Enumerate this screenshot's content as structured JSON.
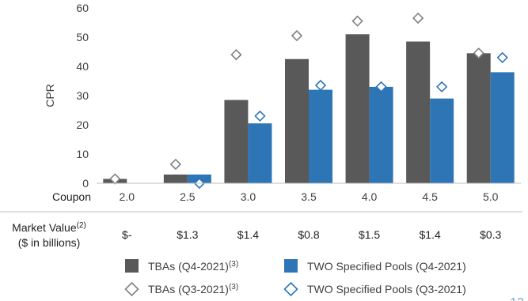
{
  "chart_data": {
    "type": "bar",
    "ylabel": "CPR",
    "ylim": [
      0,
      60
    ],
    "yticks": [
      0,
      10,
      20,
      30,
      40,
      50,
      60
    ],
    "grid": false,
    "x_row_label": "Coupon",
    "categories": [
      "2.0",
      "2.5",
      "3.0",
      "3.5",
      "4.0",
      "4.5",
      "5.0"
    ],
    "series": [
      {
        "name": "TBAs (Q4-2021)",
        "name_superscript": "(3)",
        "mark": "bar",
        "color": "#595959",
        "values": [
          1.5,
          3,
          28.5,
          42.5,
          51,
          48.5,
          44.5
        ]
      },
      {
        "name": "TWO Specified Pools (Q4-2021)",
        "mark": "bar",
        "color": "#2e75b6",
        "values": [
          null,
          3,
          20.5,
          32,
          33,
          29,
          38
        ]
      },
      {
        "name": "TBAs (Q3-2021)",
        "name_superscript": "(3)",
        "mark": "diamond",
        "color": "#808080",
        "values": [
          1.5,
          6.5,
          44,
          50.5,
          55.5,
          56.5,
          44.5
        ]
      },
      {
        "name": "TWO Specified Pools (Q3-2021)",
        "mark": "diamond",
        "color": "#2e75b6",
        "values": [
          null,
          0,
          23,
          33.5,
          33,
          33,
          43
        ]
      }
    ],
    "market_value": {
      "label_line1": "Market Value",
      "label_superscript": "(2)",
      "label_line2": "($ in billions)",
      "values": [
        "$-",
        "$1.3",
        "$1.4",
        "$0.8",
        "$1.5",
        "$1.4",
        "$0.3"
      ]
    },
    "legend_position": "bottom"
  },
  "page_number": "13"
}
